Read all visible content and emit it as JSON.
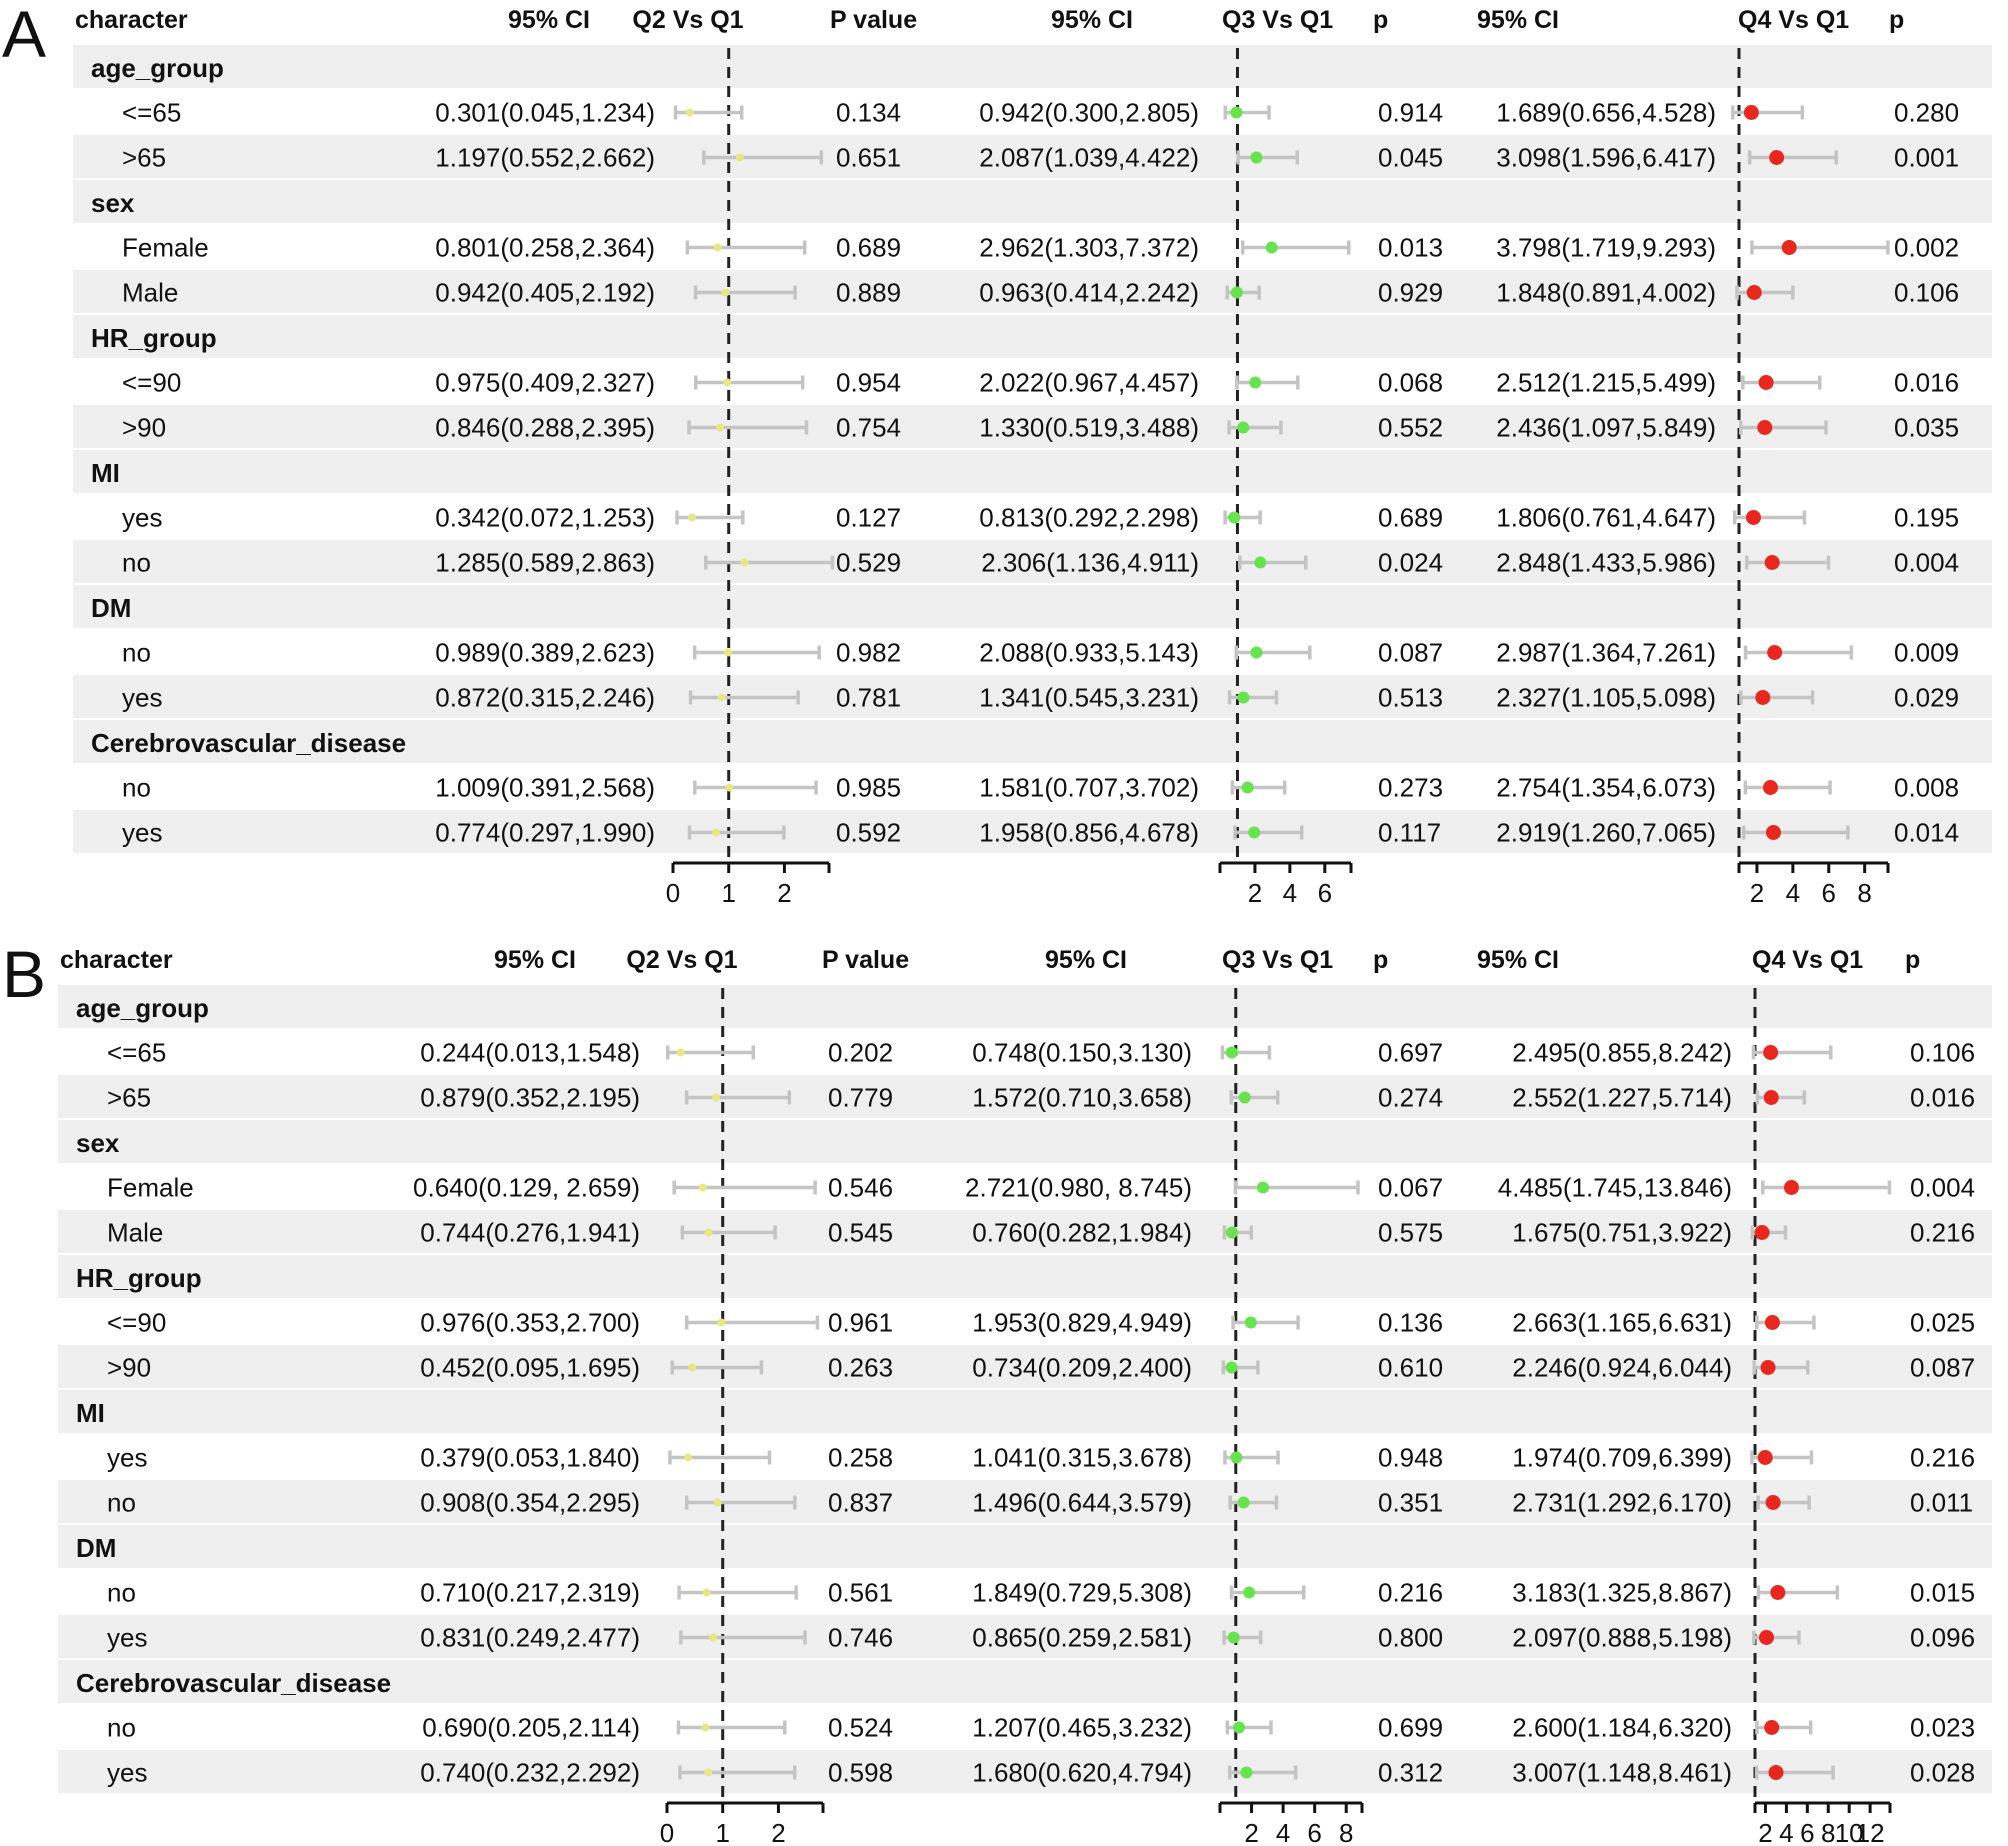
{
  "colors": {
    "band": "#efefef",
    "q2_point": "#e6e882",
    "q3_point": "#66e34d",
    "q4_point": "#e8281e",
    "ci_line": "#c4c4c4"
  },
  "chart_data": [
    {
      "type": "forest",
      "panel": "A",
      "headers": {
        "character": "character",
        "ci_q2": "95% CI",
        "q2": "Q2 Vs Q1",
        "p_q2": "P value",
        "ci_q3": "95% CI",
        "q3": "Q3 Vs Q1",
        "p_q3": "p",
        "ci_q4": "95% CI",
        "q4": "Q4 Vs Q1",
        "p_q4": "p"
      },
      "axes": {
        "q2": {
          "range": [
            0,
            2.8
          ],
          "ticks": [
            "0",
            "1",
            "2"
          ],
          "tick_values": [
            0,
            1,
            2
          ],
          "ref": 1
        },
        "q3": {
          "range": [
            0,
            7.5
          ],
          "ticks": [
            "2",
            "4",
            "6"
          ],
          "tick_values": [
            2,
            4,
            6
          ],
          "ref": 1
        },
        "q4": {
          "range": [
            1,
            9.3
          ],
          "ticks": [
            "2",
            "4",
            "6",
            "8"
          ],
          "tick_values": [
            2,
            4,
            6,
            8
          ],
          "ref": 1
        }
      },
      "groups": [
        {
          "name": "age_group",
          "rows": [
            {
              "label": "<=65",
              "q2": {
                "text": "0.301(0.045,1.234)",
                "or": 0.301,
                "lo": 0.045,
                "hi": 1.234,
                "p": "0.134"
              },
              "q3": {
                "text": "0.942(0.300,2.805)",
                "or": 0.942,
                "lo": 0.3,
                "hi": 2.805,
                "p": "0.914"
              },
              "q4": {
                "text": "1.689(0.656,4.528)",
                "or": 1.689,
                "lo": 0.656,
                "hi": 4.528,
                "p": "0.280"
              }
            },
            {
              "label": ">65",
              "q2": {
                "text": "1.197(0.552,2.662)",
                "or": 1.197,
                "lo": 0.552,
                "hi": 2.662,
                "p": "0.651"
              },
              "q3": {
                "text": "2.087(1.039,4.422)",
                "or": 2.087,
                "lo": 1.039,
                "hi": 4.422,
                "p": "0.045"
              },
              "q4": {
                "text": "3.098(1.596,6.417)",
                "or": 3.098,
                "lo": 1.596,
                "hi": 6.417,
                "p": "0.001"
              }
            }
          ]
        },
        {
          "name": "sex",
          "rows": [
            {
              "label": "Female",
              "q2": {
                "text": "0.801(0.258,2.364)",
                "or": 0.801,
                "lo": 0.258,
                "hi": 2.364,
                "p": "0.689"
              },
              "q3": {
                "text": "2.962(1.303,7.372)",
                "or": 2.962,
                "lo": 1.303,
                "hi": 7.372,
                "p": "0.013"
              },
              "q4": {
                "text": "3.798(1.719,9.293)",
                "or": 3.798,
                "lo": 1.719,
                "hi": 9.293,
                "p": "0.002"
              }
            },
            {
              "label": "Male",
              "q2": {
                "text": "0.942(0.405,2.192)",
                "or": 0.942,
                "lo": 0.405,
                "hi": 2.192,
                "p": "0.889"
              },
              "q3": {
                "text": "0.963(0.414,2.242)",
                "or": 0.963,
                "lo": 0.414,
                "hi": 2.242,
                "p": "0.929"
              },
              "q4": {
                "text": "1.848(0.891,4.002)",
                "or": 1.848,
                "lo": 0.891,
                "hi": 4.002,
                "p": "0.106"
              }
            }
          ]
        },
        {
          "name": "HR_group",
          "rows": [
            {
              "label": "<=90",
              "q2": {
                "text": "0.975(0.409,2.327)",
                "or": 0.975,
                "lo": 0.409,
                "hi": 2.327,
                "p": "0.954"
              },
              "q3": {
                "text": "2.022(0.967,4.457)",
                "or": 2.022,
                "lo": 0.967,
                "hi": 4.457,
                "p": "0.068"
              },
              "q4": {
                "text": "2.512(1.215,5.499)",
                "or": 2.512,
                "lo": 1.215,
                "hi": 5.499,
                "p": "0.016"
              }
            },
            {
              "label": ">90",
              "q2": {
                "text": "0.846(0.288,2.395)",
                "or": 0.846,
                "lo": 0.288,
                "hi": 2.395,
                "p": "0.754"
              },
              "q3": {
                "text": "1.330(0.519,3.488)",
                "or": 1.33,
                "lo": 0.519,
                "hi": 3.488,
                "p": "0.552"
              },
              "q4": {
                "text": "2.436(1.097,5.849)",
                "or": 2.436,
                "lo": 1.097,
                "hi": 5.849,
                "p": "0.035"
              }
            }
          ]
        },
        {
          "name": "MI",
          "rows": [
            {
              "label": "yes",
              "q2": {
                "text": "0.342(0.072,1.253)",
                "or": 0.342,
                "lo": 0.072,
                "hi": 1.253,
                "p": "0.127"
              },
              "q3": {
                "text": "0.813(0.292,2.298)",
                "or": 0.813,
                "lo": 0.292,
                "hi": 2.298,
                "p": "0.689"
              },
              "q4": {
                "text": "1.806(0.761,4.647)",
                "or": 1.806,
                "lo": 0.761,
                "hi": 4.647,
                "p": "0.195"
              }
            },
            {
              "label": "no",
              "q2": {
                "text": "1.285(0.589,2.863)",
                "or": 1.285,
                "lo": 0.589,
                "hi": 2.863,
                "p": "0.529"
              },
              "q3": {
                "text": "2.306(1.136,4.911)",
                "or": 2.306,
                "lo": 1.136,
                "hi": 4.911,
                "p": "0.024"
              },
              "q4": {
                "text": "2.848(1.433,5.986)",
                "or": 2.848,
                "lo": 1.433,
                "hi": 5.986,
                "p": "0.004"
              }
            }
          ]
        },
        {
          "name": "DM",
          "rows": [
            {
              "label": "no",
              "q2": {
                "text": "0.989(0.389,2.623)",
                "or": 0.989,
                "lo": 0.389,
                "hi": 2.623,
                "p": "0.982"
              },
              "q3": {
                "text": "2.088(0.933,5.143)",
                "or": 2.088,
                "lo": 0.933,
                "hi": 5.143,
                "p": "0.087"
              },
              "q4": {
                "text": "2.987(1.364,7.261)",
                "or": 2.987,
                "lo": 1.364,
                "hi": 7.261,
                "p": "0.009"
              }
            },
            {
              "label": "yes",
              "q2": {
                "text": "0.872(0.315,2.246)",
                "or": 0.872,
                "lo": 0.315,
                "hi": 2.246,
                "p": "0.781"
              },
              "q3": {
                "text": "1.341(0.545,3.231)",
                "or": 1.341,
                "lo": 0.545,
                "hi": 3.231,
                "p": "0.513"
              },
              "q4": {
                "text": "2.327(1.105,5.098)",
                "or": 2.327,
                "lo": 1.105,
                "hi": 5.098,
                "p": "0.029"
              }
            }
          ]
        },
        {
          "name": "Cerebrovascular_disease",
          "rows": [
            {
              "label": "no",
              "q2": {
                "text": "1.009(0.391,2.568)",
                "or": 1.009,
                "lo": 0.391,
                "hi": 2.568,
                "p": "0.985"
              },
              "q3": {
                "text": "1.581(0.707,3.702)",
                "or": 1.581,
                "lo": 0.707,
                "hi": 3.702,
                "p": "0.273"
              },
              "q4": {
                "text": "2.754(1.354,6.073)",
                "or": 2.754,
                "lo": 1.354,
                "hi": 6.073,
                "p": "0.008"
              }
            },
            {
              "label": "yes",
              "q2": {
                "text": "0.774(0.297,1.990)",
                "or": 0.774,
                "lo": 0.297,
                "hi": 1.99,
                "p": "0.592"
              },
              "q3": {
                "text": "1.958(0.856,4.678)",
                "or": 1.958,
                "lo": 0.856,
                "hi": 4.678,
                "p": "0.117"
              },
              "q4": {
                "text": "2.919(1.260,7.065)",
                "or": 2.919,
                "lo": 1.26,
                "hi": 7.065,
                "p": "0.014"
              }
            }
          ]
        }
      ]
    },
    {
      "type": "forest",
      "panel": "B",
      "headers": {
        "character": "character",
        "ci_q2": "95% CI",
        "q2": "Q2 Vs Q1",
        "p_q2": "P value",
        "ci_q3": "95% CI",
        "q3": "Q3 Vs Q1",
        "p_q3": "p",
        "ci_q4": "95% CI",
        "q4": "Q4 Vs Q1",
        "p_q4": "p"
      },
      "axes": {
        "q2": {
          "range": [
            0,
            2.8
          ],
          "ticks": [
            "0",
            "1",
            "2"
          ],
          "tick_values": [
            0,
            1,
            2
          ],
          "ref": 1
        },
        "q3": {
          "range": [
            0,
            9
          ],
          "ticks": [
            "2",
            "4",
            "6",
            "8"
          ],
          "tick_values": [
            2,
            4,
            6,
            8
          ],
          "ref": 1
        },
        "q4": {
          "range": [
            1,
            13.9
          ],
          "ticks": [
            "2",
            "4",
            "6",
            "8",
            "10",
            "12"
          ],
          "tick_values": [
            2,
            4,
            6,
            8,
            10,
            12
          ],
          "ref": 1
        }
      },
      "groups": [
        {
          "name": "age_group",
          "rows": [
            {
              "label": "<=65",
              "q2": {
                "text": "0.244(0.013,1.548)",
                "or": 0.244,
                "lo": 0.013,
                "hi": 1.548,
                "p": "0.202"
              },
              "q3": {
                "text": "0.748(0.150,3.130)",
                "or": 0.748,
                "lo": 0.15,
                "hi": 3.13,
                "p": "0.697"
              },
              "q4": {
                "text": "2.495(0.855,8.242)",
                "or": 2.495,
                "lo": 0.855,
                "hi": 8.242,
                "p": "0.106"
              }
            },
            {
              "label": ">65",
              "q2": {
                "text": "0.879(0.352,2.195)",
                "or": 0.879,
                "lo": 0.352,
                "hi": 2.195,
                "p": "0.779"
              },
              "q3": {
                "text": "1.572(0.710,3.658)",
                "or": 1.572,
                "lo": 0.71,
                "hi": 3.658,
                "p": "0.274"
              },
              "q4": {
                "text": "2.552(1.227,5.714)",
                "or": 2.552,
                "lo": 1.227,
                "hi": 5.714,
                "p": "0.016"
              }
            }
          ]
        },
        {
          "name": "sex",
          "rows": [
            {
              "label": "Female",
              "q2": {
                "text": "0.640(0.129, 2.659)",
                "or": 0.64,
                "lo": 0.129,
                "hi": 2.659,
                "p": "0.546"
              },
              "q3": {
                "text": "2.721(0.980, 8.745)",
                "or": 2.721,
                "lo": 0.98,
                "hi": 8.745,
                "p": "0.067"
              },
              "q4": {
                "text": "4.485(1.745,13.846)",
                "or": 4.485,
                "lo": 1.745,
                "hi": 13.846,
                "p": "0.004"
              }
            },
            {
              "label": "Male",
              "q2": {
                "text": "0.744(0.276,1.941)",
                "or": 0.744,
                "lo": 0.276,
                "hi": 1.941,
                "p": "0.545"
              },
              "q3": {
                "text": "0.760(0.282,1.984)",
                "or": 0.76,
                "lo": 0.282,
                "hi": 1.984,
                "p": "0.575"
              },
              "q4": {
                "text": "1.675(0.751,3.922)",
                "or": 1.675,
                "lo": 0.751,
                "hi": 3.922,
                "p": "0.216"
              }
            }
          ]
        },
        {
          "name": "HR_group",
          "rows": [
            {
              "label": "<=90",
              "q2": {
                "text": "0.976(0.353,2.700)",
                "or": 0.976,
                "lo": 0.353,
                "hi": 2.7,
                "p": "0.961"
              },
              "q3": {
                "text": "1.953(0.829,4.949)",
                "or": 1.953,
                "lo": 0.829,
                "hi": 4.949,
                "p": "0.136"
              },
              "q4": {
                "text": "2.663(1.165,6.631)",
                "or": 2.663,
                "lo": 1.165,
                "hi": 6.631,
                "p": "0.025"
              }
            },
            {
              "label": ">90",
              "q2": {
                "text": "0.452(0.095,1.695)",
                "or": 0.452,
                "lo": 0.095,
                "hi": 1.695,
                "p": "0.263"
              },
              "q3": {
                "text": "0.734(0.209,2.400)",
                "or": 0.734,
                "lo": 0.209,
                "hi": 2.4,
                "p": "0.610"
              },
              "q4": {
                "text": "2.246(0.924,6.044)",
                "or": 2.246,
                "lo": 0.924,
                "hi": 6.044,
                "p": "0.087"
              }
            }
          ]
        },
        {
          "name": "MI",
          "rows": [
            {
              "label": "yes",
              "q2": {
                "text": "0.379(0.053,1.840)",
                "or": 0.379,
                "lo": 0.053,
                "hi": 1.84,
                "p": "0.258"
              },
              "q3": {
                "text": "1.041(0.315,3.678)",
                "or": 1.041,
                "lo": 0.315,
                "hi": 3.678,
                "p": "0.948"
              },
              "q4": {
                "text": "1.974(0.709,6.399)",
                "or": 1.974,
                "lo": 0.709,
                "hi": 6.399,
                "p": "0.216"
              }
            },
            {
              "label": "no",
              "q2": {
                "text": "0.908(0.354,2.295)",
                "or": 0.908,
                "lo": 0.354,
                "hi": 2.295,
                "p": "0.837"
              },
              "q3": {
                "text": "1.496(0.644,3.579)",
                "or": 1.496,
                "lo": 0.644,
                "hi": 3.579,
                "p": "0.351"
              },
              "q4": {
                "text": "2.731(1.292,6.170)",
                "or": 2.731,
                "lo": 1.292,
                "hi": 6.17,
                "p": "0.011"
              }
            }
          ]
        },
        {
          "name": "DM",
          "rows": [
            {
              "label": "no",
              "q2": {
                "text": "0.710(0.217,2.319)",
                "or": 0.71,
                "lo": 0.217,
                "hi": 2.319,
                "p": "0.561"
              },
              "q3": {
                "text": "1.849(0.729,5.308)",
                "or": 1.849,
                "lo": 0.729,
                "hi": 5.308,
                "p": "0.216"
              },
              "q4": {
                "text": "3.183(1.325,8.867)",
                "or": 3.183,
                "lo": 1.325,
                "hi": 8.867,
                "p": "0.015"
              }
            },
            {
              "label": "yes",
              "q2": {
                "text": "0.831(0.249,2.477)",
                "or": 0.831,
                "lo": 0.249,
                "hi": 2.477,
                "p": "0.746"
              },
              "q3": {
                "text": "0.865(0.259,2.581)",
                "or": 0.865,
                "lo": 0.259,
                "hi": 2.581,
                "p": "0.800"
              },
              "q4": {
                "text": "2.097(0.888,5.198)",
                "or": 2.097,
                "lo": 0.888,
                "hi": 5.198,
                "p": "0.096"
              }
            }
          ]
        },
        {
          "name": "Cerebrovascular_disease",
          "rows": [
            {
              "label": "no",
              "q2": {
                "text": "0.690(0.205,2.114)",
                "or": 0.69,
                "lo": 0.205,
                "hi": 2.114,
                "p": "0.524"
              },
              "q3": {
                "text": "1.207(0.465,3.232)",
                "or": 1.207,
                "lo": 0.465,
                "hi": 3.232,
                "p": "0.699"
              },
              "q4": {
                "text": "2.600(1.184,6.320)",
                "or": 2.6,
                "lo": 1.184,
                "hi": 6.32,
                "p": "0.023"
              }
            },
            {
              "label": "yes",
              "q2": {
                "text": "0.740(0.232,2.292)",
                "or": 0.74,
                "lo": 0.232,
                "hi": 2.292,
                "p": "0.598"
              },
              "q3": {
                "text": "1.680(0.620,4.794)",
                "or": 1.68,
                "lo": 0.62,
                "hi": 4.794,
                "p": "0.312"
              },
              "q4": {
                "text": "3.007(1.148,8.461)",
                "or": 3.007,
                "lo": 1.148,
                "hi": 8.461,
                "p": "0.028"
              }
            }
          ]
        }
      ]
    }
  ]
}
